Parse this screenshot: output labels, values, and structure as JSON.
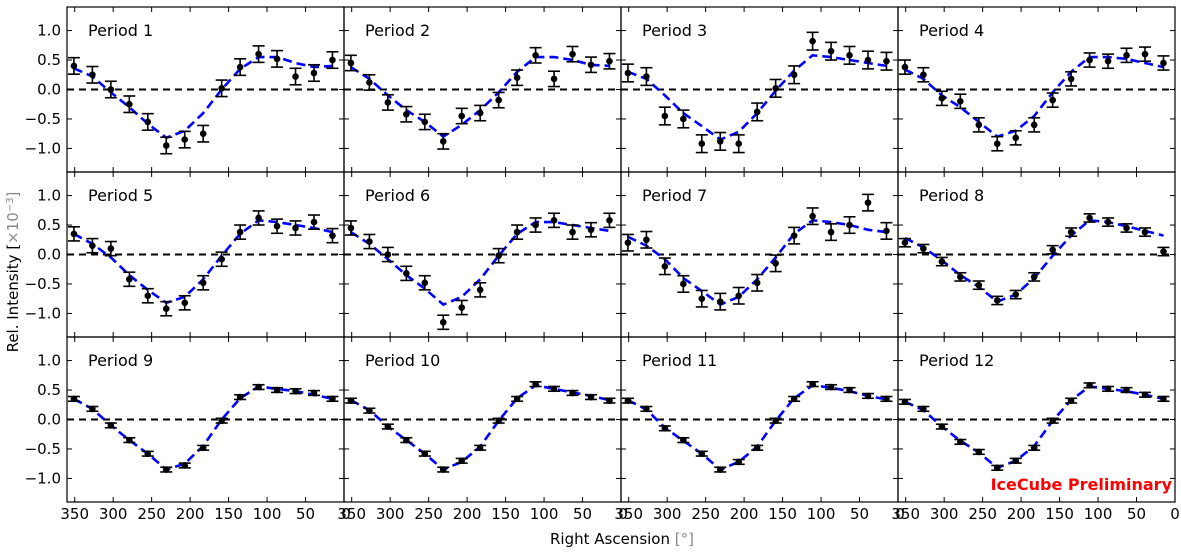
{
  "figure": {
    "ylabel_text": "Rel. Intensity [",
    "ylabel_unit": "×10",
    "ylabel_exp": "−3",
    "ylabel_close": "]",
    "xlabel_text": "Right Ascension ",
    "xlabel_unit": "[°]",
    "watermark": "IceCube Preliminary",
    "watermark_color": "#ff0000",
    "fit_color": "#0000ff",
    "point_color": "#000000"
  },
  "chart_data": {
    "type": "scatter",
    "layout": "3x4 grid of panels with shared axes",
    "x_axis_inverted": true,
    "xlim": [
      360,
      0
    ],
    "ylim": [
      -1.4,
      1.4
    ],
    "xticks": [
      350,
      300,
      250,
      200,
      150,
      100,
      50,
      0
    ],
    "xticks_first_column": [
      350,
      300,
      250,
      200,
      150,
      100,
      50
    ],
    "xticks_last_panel": [
      350,
      300,
      250,
      200,
      150,
      100,
      50,
      0
    ],
    "yticks": [
      -1.0,
      -0.5,
      0.0,
      0.5,
      1.0
    ],
    "reference_line": {
      "y": 0.0,
      "style": "dashed",
      "color": "#000000"
    },
    "x": [
      351,
      327,
      303,
      279,
      255,
      231,
      207,
      183,
      159,
      135,
      111,
      87,
      63,
      39,
      15
    ],
    "panels": [
      {
        "title": "Period 1",
        "y": [
          0.4,
          0.25,
          0.0,
          -0.25,
          -0.55,
          -0.95,
          -0.85,
          -0.75,
          0.02,
          0.38,
          0.6,
          0.52,
          0.22,
          0.28,
          0.5
        ],
        "err": [
          0.14,
          0.14,
          0.14,
          0.14,
          0.14,
          0.14,
          0.14,
          0.14,
          0.14,
          0.14,
          0.14,
          0.14,
          0.14,
          0.14,
          0.14
        ],
        "fit": [
          0.36,
          0.22,
          -0.05,
          -0.3,
          -0.58,
          -0.82,
          -0.7,
          -0.4,
          0.0,
          0.35,
          0.55,
          0.55,
          0.45,
          0.38,
          0.4
        ]
      },
      {
        "title": "Period 2",
        "y": [
          0.45,
          0.12,
          -0.22,
          -0.42,
          -0.55,
          -0.88,
          -0.45,
          -0.4,
          -0.18,
          0.2,
          0.58,
          0.18,
          0.6,
          0.42,
          0.48
        ],
        "err": [
          0.13,
          0.13,
          0.13,
          0.13,
          0.13,
          0.13,
          0.13,
          0.13,
          0.13,
          0.13,
          0.13,
          0.13,
          0.13,
          0.13,
          0.13
        ],
        "fit": [
          0.38,
          0.18,
          -0.1,
          -0.35,
          -0.55,
          -0.8,
          -0.6,
          -0.35,
          -0.05,
          0.3,
          0.55,
          0.55,
          0.5,
          0.42,
          0.4
        ]
      },
      {
        "title": "Period 3",
        "y": [
          0.28,
          0.22,
          -0.45,
          -0.5,
          -0.92,
          -0.88,
          -0.92,
          -0.38,
          0.02,
          0.25,
          0.82,
          0.65,
          0.58,
          0.5,
          0.48
        ],
        "err": [
          0.15,
          0.15,
          0.15,
          0.15,
          0.15,
          0.15,
          0.15,
          0.15,
          0.15,
          0.15,
          0.15,
          0.15,
          0.15,
          0.15,
          0.15
        ],
        "fit": [
          0.3,
          0.18,
          -0.1,
          -0.4,
          -0.62,
          -0.85,
          -0.72,
          -0.4,
          -0.02,
          0.32,
          0.58,
          0.55,
          0.5,
          0.45,
          0.4
        ]
      },
      {
        "title": "Period 4",
        "y": [
          0.38,
          0.25,
          -0.15,
          -0.2,
          -0.6,
          -0.92,
          -0.82,
          -0.6,
          -0.18,
          0.18,
          0.5,
          0.48,
          0.58,
          0.6,
          0.45
        ],
        "err": [
          0.12,
          0.12,
          0.12,
          0.12,
          0.12,
          0.12,
          0.12,
          0.12,
          0.12,
          0.12,
          0.12,
          0.12,
          0.12,
          0.12,
          0.12
        ],
        "fit": [
          0.34,
          0.18,
          -0.1,
          -0.3,
          -0.55,
          -0.8,
          -0.7,
          -0.45,
          -0.05,
          0.3,
          0.55,
          0.55,
          0.52,
          0.45,
          0.38
        ]
      },
      {
        "title": "Period 5",
        "y": [
          0.35,
          0.15,
          0.1,
          -0.42,
          -0.7,
          -0.92,
          -0.82,
          -0.48,
          -0.08,
          0.38,
          0.62,
          0.48,
          0.45,
          0.55,
          0.32
        ],
        "err": [
          0.12,
          0.12,
          0.12,
          0.12,
          0.12,
          0.12,
          0.12,
          0.12,
          0.12,
          0.12,
          0.12,
          0.12,
          0.12,
          0.12,
          0.12
        ],
        "fit": [
          0.35,
          0.18,
          -0.05,
          -0.35,
          -0.6,
          -0.82,
          -0.72,
          -0.42,
          -0.02,
          0.35,
          0.58,
          0.55,
          0.5,
          0.45,
          0.38
        ]
      },
      {
        "title": "Period 6",
        "y": [
          0.45,
          0.22,
          0.0,
          -0.32,
          -0.48,
          -1.15,
          -0.9,
          -0.6,
          -0.02,
          0.38,
          0.5,
          0.58,
          0.38,
          0.42,
          0.58
        ],
        "err": [
          0.12,
          0.12,
          0.12,
          0.12,
          0.12,
          0.12,
          0.12,
          0.12,
          0.12,
          0.12,
          0.12,
          0.12,
          0.12,
          0.12,
          0.12
        ],
        "fit": [
          0.38,
          0.18,
          -0.08,
          -0.35,
          -0.58,
          -0.85,
          -0.72,
          -0.42,
          -0.02,
          0.35,
          0.55,
          0.55,
          0.5,
          0.45,
          0.4
        ]
      },
      {
        "title": "Period 7",
        "y": [
          0.2,
          0.25,
          -0.2,
          -0.5,
          -0.75,
          -0.8,
          -0.7,
          -0.48,
          -0.15,
          0.32,
          0.65,
          0.38,
          0.5,
          0.88,
          0.4
        ],
        "err": [
          0.14,
          0.14,
          0.14,
          0.14,
          0.14,
          0.14,
          0.14,
          0.14,
          0.14,
          0.14,
          0.14,
          0.14,
          0.14,
          0.14,
          0.14
        ],
        "fit": [
          0.3,
          0.15,
          -0.08,
          -0.4,
          -0.62,
          -0.85,
          -0.72,
          -0.42,
          -0.05,
          0.35,
          0.58,
          0.55,
          0.5,
          0.42,
          0.38
        ]
      },
      {
        "title": "Period 8",
        "y": [
          0.2,
          0.1,
          -0.12,
          -0.38,
          -0.52,
          -0.78,
          -0.68,
          -0.38,
          0.08,
          0.38,
          0.62,
          0.55,
          0.45,
          0.38,
          0.05
        ],
        "err": [
          0.07,
          0.07,
          0.07,
          0.07,
          0.07,
          0.07,
          0.07,
          0.07,
          0.07,
          0.07,
          0.07,
          0.07,
          0.07,
          0.07,
          0.07
        ],
        "fit": [
          0.28,
          0.12,
          -0.1,
          -0.35,
          -0.55,
          -0.8,
          -0.68,
          -0.4,
          -0.02,
          0.32,
          0.58,
          0.55,
          0.48,
          0.4,
          0.32
        ]
      },
      {
        "title": "Period 9",
        "y": [
          0.35,
          0.18,
          -0.1,
          -0.35,
          -0.58,
          -0.85,
          -0.78,
          -0.48,
          -0.02,
          0.38,
          0.55,
          0.5,
          0.48,
          0.45,
          0.35
        ],
        "err": [
          0.04,
          0.04,
          0.04,
          0.04,
          0.04,
          0.04,
          0.04,
          0.04,
          0.04,
          0.04,
          0.04,
          0.04,
          0.04,
          0.04,
          0.04
        ],
        "fit": [
          0.35,
          0.18,
          -0.1,
          -0.35,
          -0.58,
          -0.85,
          -0.75,
          -0.45,
          0.0,
          0.36,
          0.56,
          0.52,
          0.48,
          0.42,
          0.35
        ]
      },
      {
        "title": "Period 10",
        "y": [
          0.32,
          0.15,
          -0.12,
          -0.35,
          -0.58,
          -0.85,
          -0.7,
          -0.48,
          -0.02,
          0.35,
          0.6,
          0.52,
          0.45,
          0.38,
          0.32
        ],
        "err": [
          0.04,
          0.04,
          0.04,
          0.04,
          0.04,
          0.04,
          0.04,
          0.04,
          0.04,
          0.04,
          0.04,
          0.04,
          0.04,
          0.04,
          0.04
        ],
        "fit": [
          0.33,
          0.16,
          -0.12,
          -0.35,
          -0.58,
          -0.85,
          -0.72,
          -0.46,
          -0.02,
          0.36,
          0.58,
          0.52,
          0.46,
          0.4,
          0.33
        ]
      },
      {
        "title": "Period 11",
        "y": [
          0.32,
          0.18,
          -0.15,
          -0.35,
          -0.58,
          -0.85,
          -0.72,
          -0.48,
          -0.02,
          0.35,
          0.6,
          0.55,
          0.5,
          0.4,
          0.35
        ],
        "err": [
          0.04,
          0.04,
          0.04,
          0.04,
          0.04,
          0.04,
          0.04,
          0.04,
          0.04,
          0.04,
          0.04,
          0.04,
          0.04,
          0.04,
          0.04
        ],
        "fit": [
          0.33,
          0.17,
          -0.14,
          -0.36,
          -0.58,
          -0.85,
          -0.72,
          -0.46,
          -0.02,
          0.36,
          0.58,
          0.54,
          0.48,
          0.4,
          0.34
        ]
      },
      {
        "title": "Period 12",
        "y": [
          0.3,
          0.18,
          -0.12,
          -0.38,
          -0.55,
          -0.82,
          -0.7,
          -0.48,
          -0.02,
          0.32,
          0.58,
          0.52,
          0.5,
          0.42,
          0.35
        ],
        "err": [
          0.04,
          0.04,
          0.04,
          0.04,
          0.04,
          0.04,
          0.04,
          0.04,
          0.04,
          0.04,
          0.04,
          0.04,
          0.04,
          0.04,
          0.04
        ],
        "fit": [
          0.3,
          0.16,
          -0.12,
          -0.36,
          -0.56,
          -0.82,
          -0.7,
          -0.45,
          -0.02,
          0.33,
          0.56,
          0.52,
          0.48,
          0.42,
          0.35
        ]
      }
    ]
  }
}
